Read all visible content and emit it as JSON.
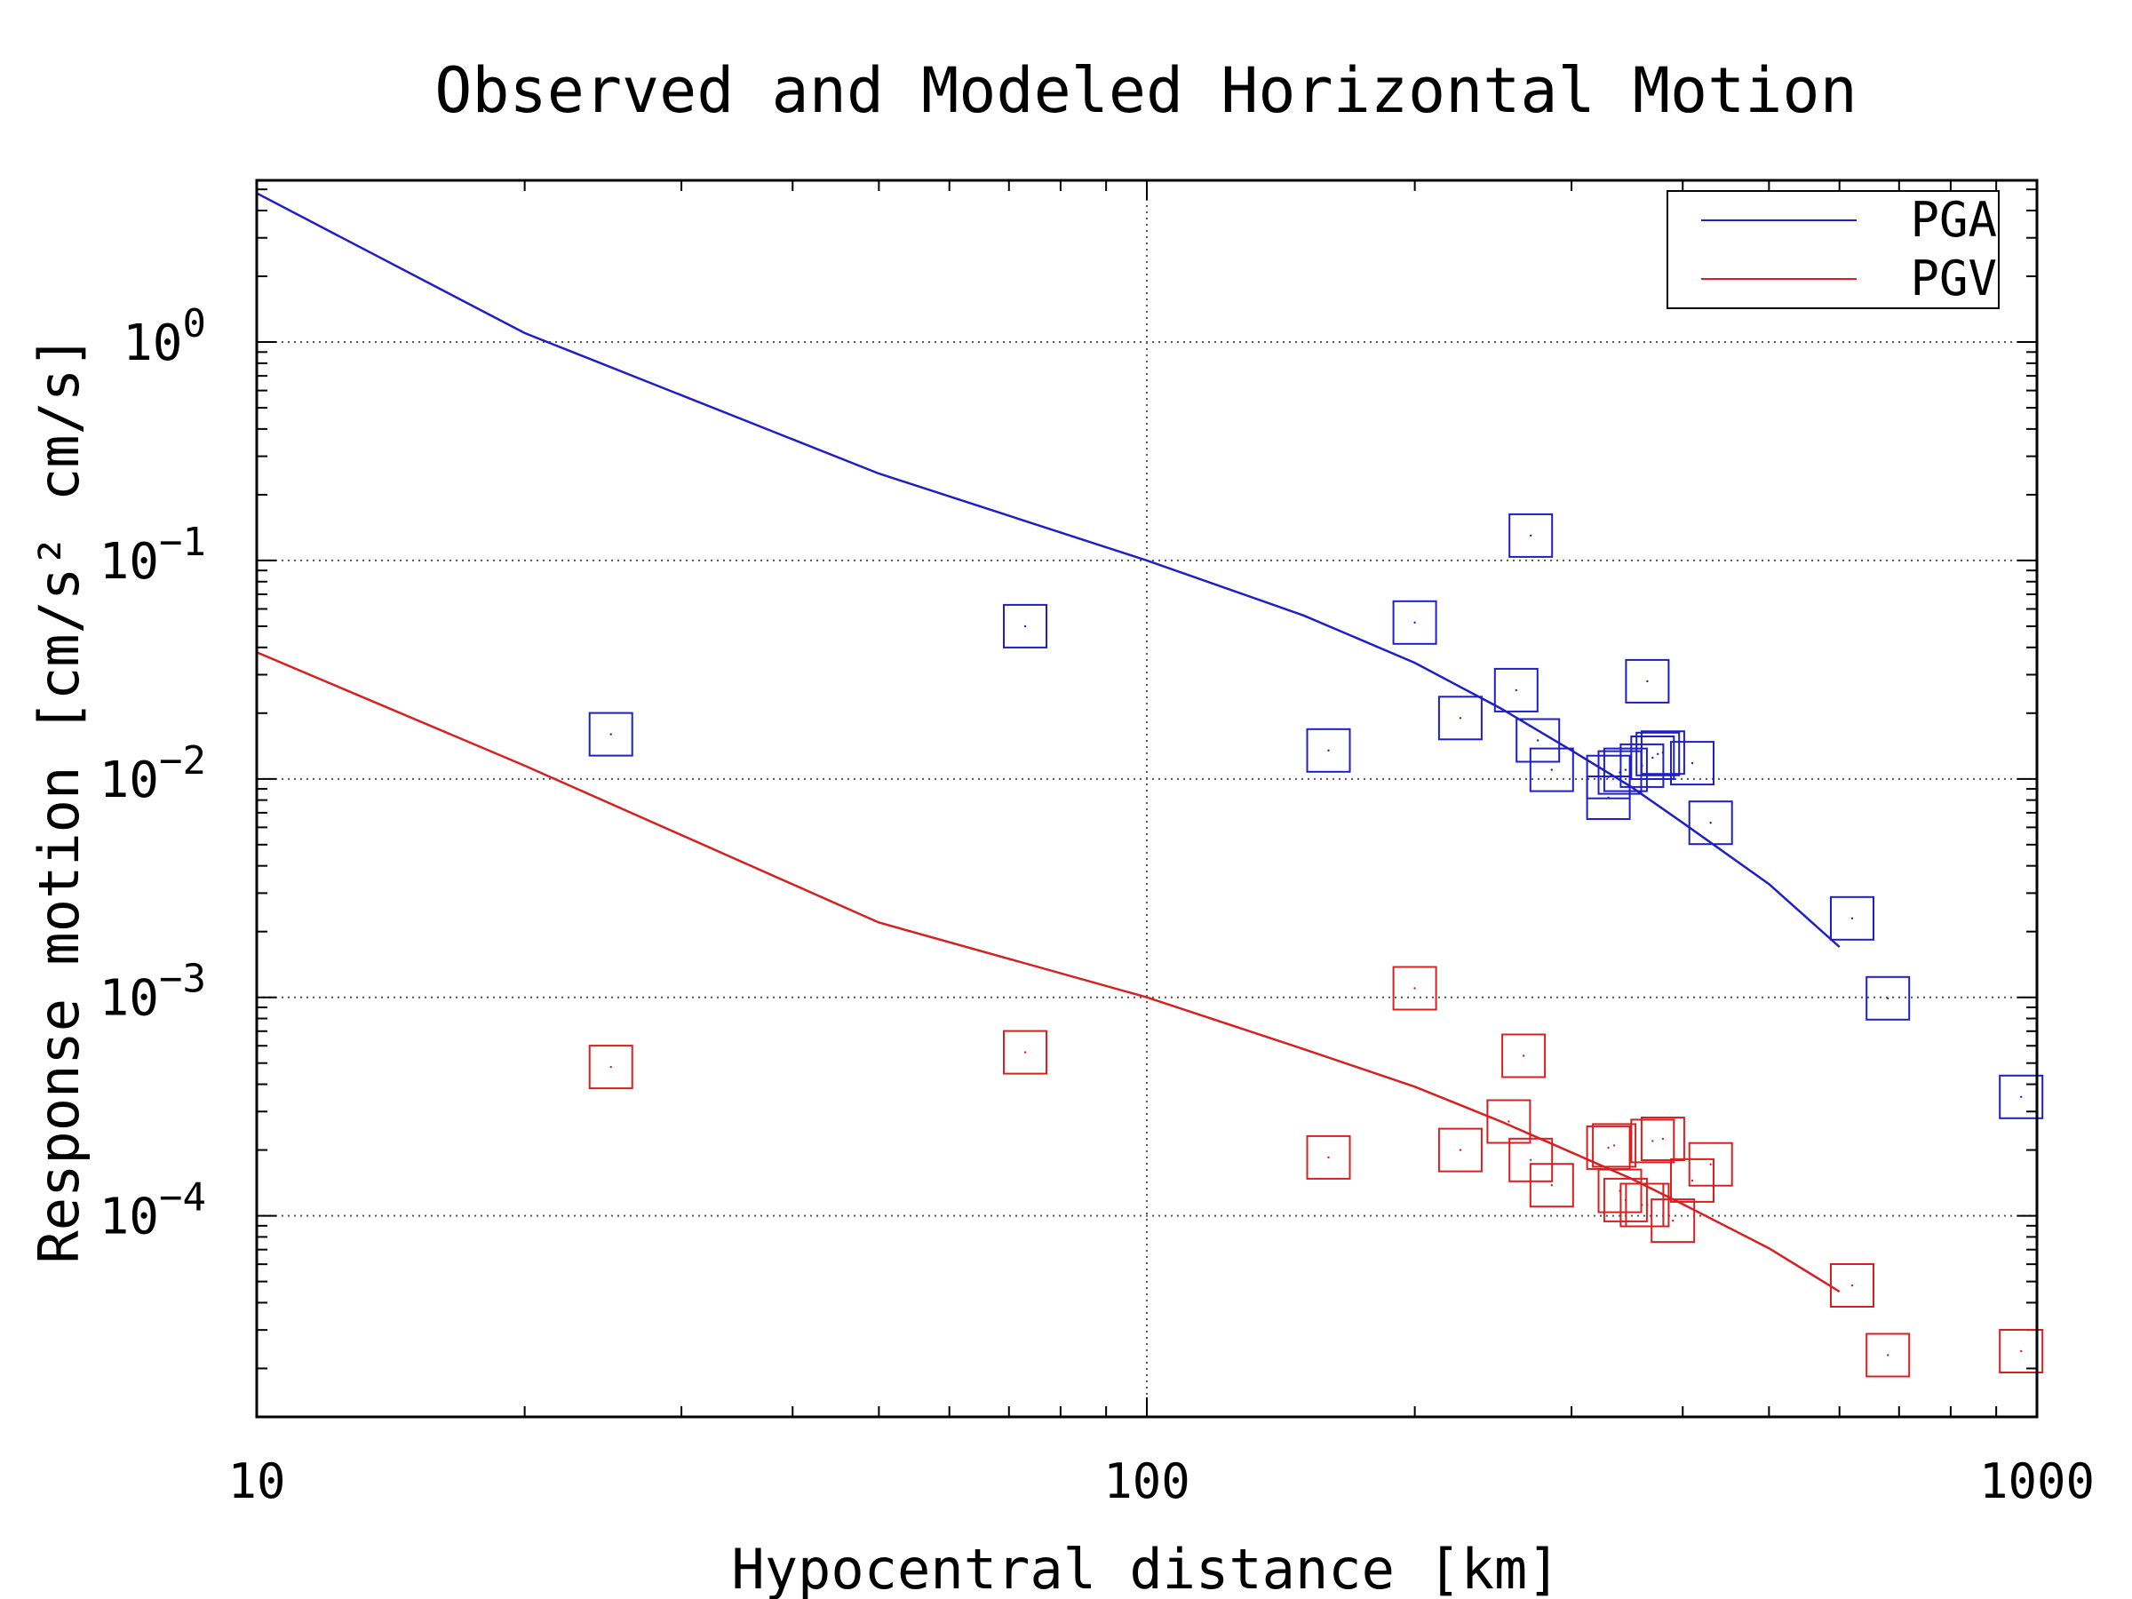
{
  "chart_data": {
    "type": "scatter",
    "title": "Observed and Modeled Horizontal Motion",
    "xlabel": "Hypocentral distance [km]",
    "ylabel": "Response motion [cm/s² cm/s]",
    "xscale": "log",
    "yscale": "log",
    "xlim": [
      10,
      1000
    ],
    "ylim": [
      1.2e-05,
      5.5
    ],
    "x_ticks": [
      {
        "value": 10,
        "label": "10"
      },
      {
        "value": 100,
        "label": "100"
      },
      {
        "value": 1000,
        "label": "1000"
      }
    ],
    "y_ticks": [
      {
        "value": 1,
        "base": "10",
        "exp": "0"
      },
      {
        "value": 0.1,
        "base": "10",
        "exp": "−1"
      },
      {
        "value": 0.01,
        "base": "10",
        "exp": "−2"
      },
      {
        "value": 0.001,
        "base": "10",
        "exp": "−3"
      },
      {
        "value": 0.0001,
        "base": "10",
        "exp": "−4"
      }
    ],
    "grid": true,
    "legend_position": "top-right",
    "series": [
      {
        "name": "PGA",
        "color": "#1f1fc8",
        "model": {
          "x": [
            10,
            20,
            50,
            100,
            150,
            200,
            250,
            300,
            350,
            400,
            500,
            600
          ],
          "y": [
            4.8,
            1.1,
            0.25,
            0.1,
            0.056,
            0.034,
            0.021,
            0.0135,
            0.0092,
            0.0063,
            0.0033,
            0.0017
          ]
        },
        "observed": {
          "x": [
            25,
            73,
            160,
            200,
            225,
            260,
            270,
            275,
            285,
            330,
            330,
            340,
            345,
            360,
            365,
            370,
            375,
            380,
            410,
            430,
            620,
            680,
            960
          ],
          "y": [
            0.016,
            0.05,
            0.0135,
            0.052,
            0.019,
            0.0255,
            0.13,
            0.015,
            0.011,
            0.0082,
            0.0102,
            0.0107,
            0.011,
            0.0115,
            0.028,
            0.0125,
            0.013,
            0.0132,
            0.0118,
            0.0063,
            0.0023,
            0.00099,
            0.00035
          ]
        }
      },
      {
        "name": "PGV",
        "color": "#d82020",
        "model": {
          "x": [
            10,
            20,
            50,
            100,
            150,
            200,
            250,
            300,
            350,
            400,
            500,
            600
          ],
          "y": [
            0.038,
            0.0115,
            0.0022,
            0.001,
            0.00058,
            0.00039,
            0.00027,
            0.000195,
            0.000148,
            0.000113,
            7.1e-05,
            4.5e-05
          ]
        },
        "observed": {
          "x": [
            25,
            73,
            160,
            200,
            225,
            255,
            265,
            270,
            285,
            330,
            335,
            340,
            345,
            360,
            365,
            370,
            380,
            390,
            410,
            430,
            620,
            680,
            960
          ],
          "y": [
            0.00048,
            0.00056,
            0.000185,
            0.0011,
            0.0002,
            0.00027,
            0.00054,
            0.00018,
            0.000138,
            0.000205,
            0.00021,
            0.00013,
            0.000118,
            0.000112,
            0.000112,
            0.00022,
            0.000225,
            9.5e-05,
            0.000145,
            0.000172,
            4.8e-05,
            2.3e-05,
            2.4e-05
          ]
        }
      }
    ]
  }
}
